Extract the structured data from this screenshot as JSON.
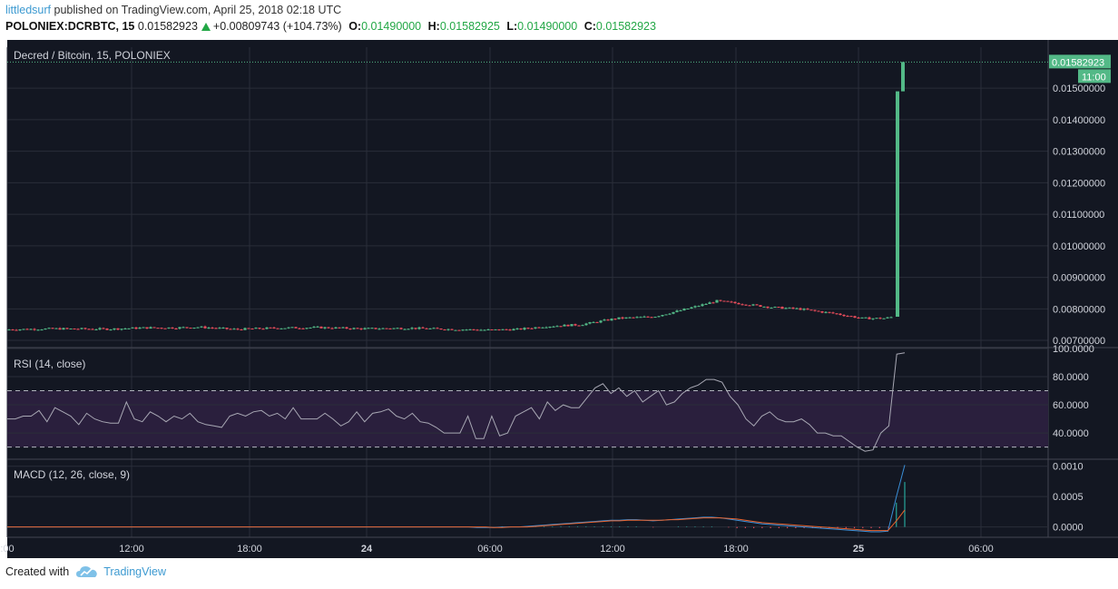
{
  "header": {
    "user": "littledsurf",
    "published_text": "published on TradingView.com, April 25, 2018 02:18 UTC",
    "symbol": "POLONIEX:DCRBTC, 15",
    "last": "0.01582923",
    "change": "+0.00809743 (+104.73%)",
    "o_label": "O:",
    "o_value": "0.01490000",
    "h_label": "H:",
    "h_value": "0.01582925",
    "l_label": "L:",
    "l_value": "0.01490000",
    "c_label": "C:",
    "c_value": "0.01582923"
  },
  "footer": {
    "created_with": "Created with",
    "brand": "TradingView"
  },
  "colors": {
    "background": "#131722",
    "up": "#53b987",
    "down": "#eb4d5c",
    "rsi_line": "#a8a8b4",
    "rsi_band": "#2a1f3d",
    "macd": "#3a8fd8",
    "signal": "#e8622c"
  },
  "chart_data": [
    {
      "type": "candlestick",
      "title": "Decred / Bitcoin, 15, POLONIEX",
      "y_ticks": [
        "0.00700000",
        "0.00800000",
        "0.00900000",
        "0.01000000",
        "0.01100000",
        "0.01200000",
        "0.01300000",
        "0.01400000",
        "0.01500000"
      ],
      "ylim": [
        0.0068,
        0.0163
      ],
      "last_price_label": "0.01582923",
      "last_price": 0.01582923,
      "last_time_label": "11:00",
      "x_ticks": [
        ":00",
        "12:00",
        "18:00",
        "24",
        "06:00",
        "12:00",
        "18:00",
        "25",
        "06:00"
      ],
      "price_path": [
        [
          0,
          0.00734
        ],
        [
          60,
          0.00737
        ],
        [
          120,
          0.00736
        ],
        [
          160,
          0.0074
        ],
        [
          190,
          0.0074
        ],
        [
          220,
          0.00742
        ],
        [
          260,
          0.00735
        ],
        [
          300,
          0.00739
        ],
        [
          350,
          0.00741
        ],
        [
          400,
          0.00737
        ],
        [
          450,
          0.00739
        ],
        [
          500,
          0.00735
        ],
        [
          540,
          0.00733
        ],
        [
          570,
          0.00735
        ],
        [
          600,
          0.00744
        ],
        [
          640,
          0.0075
        ],
        [
          680,
          0.0077
        ],
        [
          720,
          0.00775
        ],
        [
          750,
          0.00795
        ],
        [
          790,
          0.00825
        ],
        [
          820,
          0.00815
        ],
        [
          850,
          0.00805
        ],
        [
          880,
          0.008
        ],
        [
          920,
          0.00785
        ],
        [
          950,
          0.0077
        ],
        [
          975,
          0.0077
        ],
        [
          985,
          0.00775
        ]
      ],
      "spike": {
        "open": 0.00775,
        "high": 0.0149,
        "close": 0.0149,
        "open2": 0.0149,
        "close2": 0.01582923
      }
    },
    {
      "type": "line",
      "title": "RSI (14, close)",
      "y_ticks": [
        "100.0000",
        "80.0000",
        "60.0000",
        "40.0000"
      ],
      "ylim": [
        22,
        100
      ],
      "bands": [
        30,
        70
      ],
      "values": [
        50,
        50,
        52,
        52,
        56,
        48,
        58,
        55,
        52,
        46,
        54,
        50,
        48,
        47,
        47,
        62,
        50,
        48,
        55,
        52,
        48,
        52,
        50,
        54,
        48,
        46,
        45,
        44,
        52,
        54,
        52,
        55,
        56,
        52,
        54,
        50,
        58,
        50,
        50,
        50,
        54,
        50,
        45,
        48,
        55,
        48,
        54,
        55,
        57,
        52,
        50,
        54,
        48,
        47,
        44,
        40,
        40,
        40,
        52,
        36,
        36,
        52,
        38,
        40,
        52,
        55,
        58,
        50,
        62,
        56,
        60,
        58,
        58,
        65,
        72,
        75,
        68,
        72,
        66,
        70,
        62,
        66,
        70,
        60,
        62,
        68,
        72,
        74,
        78,
        78,
        76,
        66,
        60,
        50,
        45,
        52,
        55,
        50,
        48,
        48,
        50,
        46,
        40,
        40,
        38,
        38,
        34,
        30,
        27,
        28,
        40,
        45,
        96,
        97
      ]
    },
    {
      "type": "line",
      "title": "MACD (12, 26, close, 9)",
      "y_ticks": [
        "0.0010",
        "0.0005",
        "0.0000"
      ],
      "ylim": [
        -0.00017,
        0.0011
      ],
      "series": [
        {
          "key": "macd",
          "values": [
            0,
            0,
            0,
            0,
            0,
            0,
            0,
            0,
            0,
            0,
            0,
            0,
            0,
            0,
            0,
            0,
            0,
            0,
            0,
            0,
            0,
            0,
            0,
            0,
            0,
            0,
            0,
            0,
            0,
            0,
            0,
            0,
            0,
            0,
            0,
            0,
            0,
            0,
            0,
            0,
            0,
            0,
            0,
            0,
            0,
            0,
            0,
            0,
            0,
            0,
            0,
            0,
            0,
            0,
            0,
            0,
            -1e-05,
            -1e-05,
            -1e-05,
            0,
            0,
            0,
            1e-05,
            2e-05,
            3e-05,
            4e-05,
            5e-05,
            6e-05,
            7e-05,
            8e-05,
            9e-05,
            0.0001,
            0.00011,
            0.00011,
            0.00012,
            0.00012,
            0.00011,
            0.0001,
            0.00011,
            0.00012,
            0.00013,
            0.00014,
            0.00015,
            0.00016,
            0.00016,
            0.00015,
            0.00013,
            0.00011,
            9e-05,
            7e-05,
            5e-05,
            4e-05,
            3e-05,
            2e-05,
            1e-05,
            0,
            -1e-05,
            -2e-05,
            -3e-05,
            -4e-05,
            -5e-05,
            -6e-05,
            -7e-05,
            -8e-05,
            -8e-05,
            -7e-05,
            0.0005,
            0.00102
          ]
        },
        {
          "key": "signal",
          "values": [
            0,
            0,
            0,
            0,
            0,
            0,
            0,
            0,
            0,
            0,
            0,
            0,
            0,
            0,
            0,
            0,
            0,
            0,
            0,
            0,
            0,
            0,
            0,
            0,
            0,
            0,
            0,
            0,
            0,
            0,
            0,
            0,
            0,
            0,
            0,
            0,
            0,
            0,
            0,
            0,
            0,
            0,
            0,
            0,
            0,
            0,
            0,
            0,
            0,
            0,
            0,
            0,
            0,
            0,
            0,
            0,
            0,
            0,
            -1e-05,
            -1e-05,
            0,
            0,
            0,
            1e-05,
            2e-05,
            3e-05,
            4e-05,
            5e-05,
            6e-05,
            7e-05,
            8e-05,
            9e-05,
            0.0001,
            0.0001,
            0.00011,
            0.00011,
            0.00011,
            0.00011,
            0.00011,
            0.00012,
            0.00012,
            0.00013,
            0.00014,
            0.00015,
            0.00015,
            0.00015,
            0.00014,
            0.00013,
            0.00011,
            9e-05,
            7e-05,
            6e-05,
            5e-05,
            4e-05,
            3e-05,
            2e-05,
            1e-05,
            0,
            -1e-05,
            -2e-05,
            -3e-05,
            -4e-05,
            -5e-05,
            -6e-05,
            -6e-05,
            -6e-05,
            0.0001,
            0.00028
          ]
        }
      ]
    }
  ]
}
